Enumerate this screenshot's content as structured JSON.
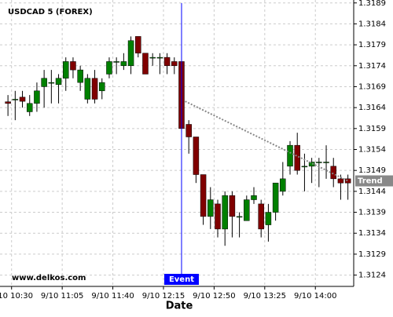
{
  "chart_data": {
    "type": "candlestick",
    "title": "USDCAD 5 (FOREX)",
    "x_label": "Date",
    "watermark": "www.delkos.com",
    "up_color": "#008000",
    "down_color": "#800000",
    "grid": true,
    "xlim": [
      -1.1,
      47.8
    ],
    "ylim": [
      1.31213,
      1.31897
    ],
    "yticks": [
      1.3189,
      1.3184,
      1.3179,
      1.3174,
      1.3169,
      1.3164,
      1.3159,
      1.3154,
      1.3149,
      1.3144,
      1.3139,
      1.3134,
      1.3129,
      1.3124
    ],
    "xticks": [
      {
        "value": 0.5,
        "label": "9/10 10:30"
      },
      {
        "value": 7.5,
        "label": "9/10 11:05"
      },
      {
        "value": 14.5,
        "label": "9/10 11:40"
      },
      {
        "value": 21.5,
        "label": "9/10 12:15"
      },
      {
        "value": 28.5,
        "label": "9/10 12:50"
      },
      {
        "value": 35.5,
        "label": "9/10 13:25"
      },
      {
        "value": 42.5,
        "label": "9/10 14:00"
      }
    ],
    "open": [
      1.31654,
      1.3166,
      1.31665,
      1.3163,
      1.3165,
      1.3169,
      1.317,
      1.31695,
      1.3171,
      1.3175,
      1.317,
      1.3166,
      1.3171,
      1.3168,
      1.3172,
      1.3175,
      1.3174,
      1.3174,
      1.3181,
      1.3177,
      1.3176,
      1.3176,
      1.3176,
      1.3175,
      1.3175,
      1.316,
      1.3157,
      1.3148,
      1.3138,
      1.3141,
      1.3135,
      1.3143,
      1.3138,
      1.3137,
      1.3142,
      1.3141,
      1.3136,
      1.3139,
      1.3144,
      1.315,
      1.3155,
      1.315,
      1.315,
      1.3151,
      1.3151,
      1.315,
      1.3147,
      1.3147
    ],
    "high": [
      1.3167,
      1.3168,
      1.3168,
      1.3167,
      1.317,
      1.3173,
      1.3173,
      1.3172,
      1.3176,
      1.3176,
      1.3174,
      1.3172,
      1.3173,
      1.3171,
      1.3176,
      1.3176,
      1.3177,
      1.3181,
      1.3181,
      1.3177,
      1.3177,
      1.3177,
      1.3177,
      1.3176,
      1.3175,
      1.3161,
      1.3157,
      1.3148,
      1.3145,
      1.3142,
      1.3144,
      1.3144,
      1.3139,
      1.3143,
      1.3145,
      1.3142,
      1.3141,
      1.3146,
      1.3151,
      1.3156,
      1.3158,
      1.3153,
      1.3152,
      1.3152,
      1.3155,
      1.3152,
      1.3148,
      1.3148
    ],
    "low": [
      1.3162,
      1.3161,
      1.3164,
      1.3162,
      1.3163,
      1.3164,
      1.3165,
      1.3165,
      1.3168,
      1.3171,
      1.3168,
      1.3165,
      1.3165,
      1.3166,
      1.3171,
      1.3172,
      1.3173,
      1.3172,
      1.3176,
      1.3172,
      1.3174,
      1.3172,
      1.3172,
      1.3172,
      1.3158,
      1.3153,
      1.3146,
      1.3136,
      1.3135,
      1.3133,
      1.3131,
      1.3133,
      1.3133,
      1.3137,
      1.3141,
      1.3133,
      1.3132,
      1.3137,
      1.3143,
      1.3148,
      1.3148,
      1.3144,
      1.3146,
      1.3145,
      1.3147,
      1.3145,
      1.3142,
      1.3142
    ],
    "close": [
      1.3165,
      1.3166,
      1.31655,
      1.3165,
      1.3168,
      1.3171,
      1.317,
      1.3171,
      1.3175,
      1.3173,
      1.3173,
      1.3171,
      1.3166,
      1.317,
      1.3175,
      1.3175,
      1.3175,
      1.318,
      1.3177,
      1.3172,
      1.3176,
      1.3176,
      1.3174,
      1.3174,
      1.3159,
      1.3157,
      1.3148,
      1.3138,
      1.3142,
      1.3135,
      1.3143,
      1.3138,
      1.3138,
      1.3142,
      1.3143,
      1.3135,
      1.3139,
      1.3146,
      1.3147,
      1.3155,
      1.3149,
      1.315,
      1.3151,
      1.3151,
      1.3151,
      1.3147,
      1.3146,
      1.3146
    ],
    "event": {
      "label": "Event",
      "index": 24
    },
    "trend": {
      "label": "Trend",
      "x": [
        24.5,
        47
      ],
      "y": [
        1.31655,
        1.31465
      ]
    }
  }
}
